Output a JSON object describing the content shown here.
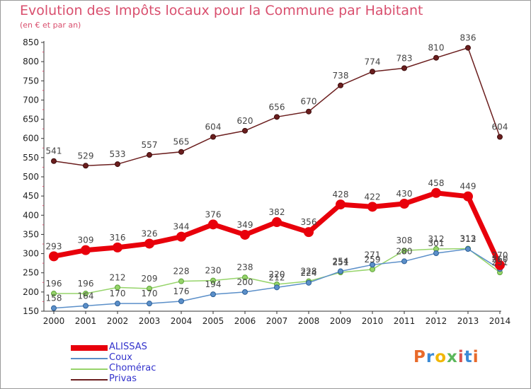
{
  "title": "Evolution des Impôts locaux pour la Commune par Habitant",
  "subtitle": "(en € et par an)",
  "logo": {
    "text": "Proxiti",
    "colors": [
      "#e86a2a",
      "#3a8ad6",
      "#f2b705",
      "#5cb85c",
      "#d9534f",
      "#3a8ad6",
      "#e86a2a"
    ]
  },
  "chart_data": {
    "type": "line",
    "title": "Evolution des Impôts locaux pour la Commune par Habitant",
    "subtitle": "(en € et par an)",
    "x": [
      "2000",
      "2001",
      "2002",
      "2003",
      "2004",
      "2005",
      "2006",
      "2007",
      "2008",
      "2009",
      "2010",
      "2011",
      "2012",
      "2013",
      "2014"
    ],
    "ylim": [
      150,
      850
    ],
    "yticks": [
      150,
      200,
      250,
      300,
      350,
      400,
      450,
      500,
      550,
      600,
      650,
      700,
      750,
      800,
      850
    ],
    "grid": false,
    "legend_position": "bottom-left",
    "series": [
      {
        "name": "ALISSAS",
        "color": "#e8000b",
        "values": [
          293,
          309,
          316,
          326,
          344,
          376,
          349,
          382,
          356,
          428,
          422,
          430,
          458,
          449,
          270
        ],
        "labels": [
          "293",
          "309",
          "316",
          "326",
          "344",
          "376",
          "349",
          "382",
          "356",
          "428",
          "422",
          "430",
          "458",
          "449",
          "270"
        ]
      },
      {
        "name": "Coux",
        "color": "#5b8fc9",
        "values": [
          158,
          164,
          170,
          170,
          176,
          194,
          200,
          212,
          224,
          254,
          271,
          280,
          301,
          312,
          260
        ],
        "labels": [
          "158",
          "164",
          "170",
          "170",
          "176",
          "194",
          "200",
          "212",
          "224",
          "254",
          "271",
          "280",
          "301",
          "312",
          "260"
        ]
      },
      {
        "name": "Chomérac",
        "color": "#96d46a",
        "values": [
          196,
          196,
          212,
          209,
          228,
          230,
          238,
          220,
          228,
          251,
          259,
          308,
          312,
          313,
          251
        ],
        "labels": [
          "196",
          "196",
          "212",
          "209",
          "228",
          "230",
          "238",
          "220",
          "228",
          "251",
          "259",
          "308",
          "312",
          "313",
          "251"
        ]
      },
      {
        "name": "Privas",
        "color": "#6b1e1e",
        "values": [
          541,
          529,
          533,
          557,
          565,
          604,
          620,
          656,
          670,
          738,
          774,
          783,
          810,
          836,
          604
        ],
        "labels": [
          "541",
          "529",
          "533",
          "557",
          "565",
          "604",
          "620",
          "656",
          "670",
          "738",
          "774",
          "783",
          "810",
          "836",
          "604"
        ]
      }
    ]
  }
}
